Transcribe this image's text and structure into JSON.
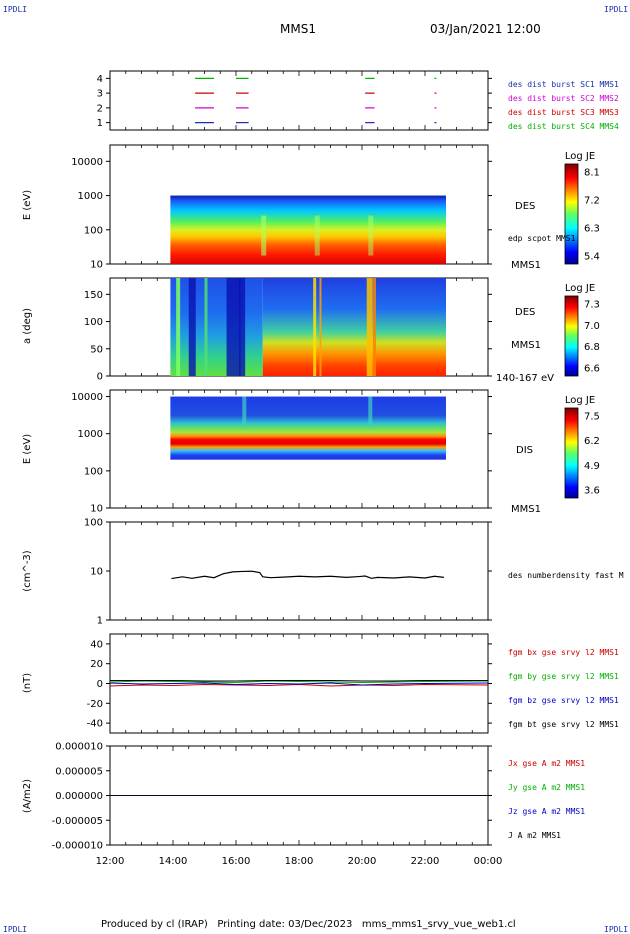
{
  "corners": {
    "tl": "IPDLI",
    "tr": "IPDLI",
    "bl": "IPDLI",
    "br": "IPDLI"
  },
  "header": {
    "mission": "MMS1",
    "datetime": "03/Jan/2021 12:00"
  },
  "footer": {
    "produced_by": "Produced by cl (IRAP)",
    "printing_date": "Printing date: 03/Dec/2023",
    "filename": "mms_mms1_srvy_vue_web1.cl"
  },
  "colors": {
    "red": "#cc0000",
    "green": "#00b000",
    "blue": "#0000cc",
    "magenta": "#d000d0",
    "black": "#000000",
    "mode_blue": "#1a2fb0"
  },
  "chart_data": [
    {
      "type": "scatter",
      "panel": "burst-modes",
      "ylabel": "",
      "yticks": [
        "1",
        "2",
        "3",
        "4"
      ],
      "ylim": [
        0.5,
        4.5
      ],
      "x_units": "hours since 12:00",
      "series": [
        {
          "name": "des dist burst SC1 MMS1",
          "level": 1,
          "color": "#1a2fb0",
          "segments": [
            [
              14.7,
              15.3
            ],
            [
              16.0,
              16.4
            ],
            [
              20.1,
              20.4
            ],
            [
              22.3,
              22.35
            ]
          ]
        },
        {
          "name": "des dist burst SC2 MMS2",
          "level": 2,
          "color": "#d000d0",
          "segments": [
            [
              14.7,
              15.3
            ],
            [
              16.0,
              16.4
            ],
            [
              20.1,
              20.4
            ],
            [
              22.3,
              22.35
            ]
          ]
        },
        {
          "name": "des dist burst SC3 MMS3",
          "level": 3,
          "color": "#cc0000",
          "segments": [
            [
              14.7,
              15.3
            ],
            [
              16.0,
              16.4
            ],
            [
              20.1,
              20.4
            ],
            [
              22.3,
              22.35
            ]
          ]
        },
        {
          "name": "des dist burst SC4 MMS4",
          "level": 4,
          "color": "#00b000",
          "segments": [
            [
              14.7,
              15.3
            ],
            [
              16.0,
              16.4
            ],
            [
              20.1,
              20.4
            ],
            [
              22.3,
              22.35
            ]
          ]
        }
      ]
    },
    {
      "type": "heatmap",
      "panel": "des-energy",
      "ylabel": "E (eV)",
      "yscale": "log",
      "ylim": [
        10,
        30000
      ],
      "yticks": [
        "10",
        "100",
        "1000",
        "10000"
      ],
      "x_range": [
        "13:55",
        "22:40"
      ],
      "y_range": [
        10,
        1000
      ],
      "colorbar": {
        "title": "Log JE",
        "ticks": [
          "8.1",
          "7.2",
          "6.3",
          "5.4"
        ],
        "range": [
          5.4,
          8.1
        ]
      },
      "labels": [
        "DES",
        "edp scpot MMS1",
        "MMS1"
      ]
    },
    {
      "type": "heatmap",
      "panel": "des-pitch",
      "ylabel": "a (deg)",
      "ylim": [
        0,
        180
      ],
      "yticks": [
        "0",
        "50",
        "100",
        "150"
      ],
      "x_range": [
        "13:55",
        "22:40"
      ],
      "colorbar": {
        "title": "Log JE",
        "ticks": [
          "7.3",
          "7.0",
          "6.8",
          "6.6"
        ],
        "range": [
          6.6,
          7.3
        ]
      },
      "labels": [
        "DES",
        "MMS1",
        "140-167 eV"
      ]
    },
    {
      "type": "heatmap",
      "panel": "dis-energy",
      "ylabel": "E (eV)",
      "yscale": "log",
      "ylim": [
        10,
        15000
      ],
      "yticks": [
        "10",
        "100",
        "1000",
        "10000"
      ],
      "x_range": [
        "13:55",
        "22:40"
      ],
      "y_range": [
        200,
        10000
      ],
      "colorbar": {
        "title": "Log JE",
        "ticks": [
          "7.5",
          "6.2",
          "4.9",
          "3.6"
        ],
        "range": [
          3.6,
          7.5
        ]
      },
      "labels": [
        "DIS",
        "MMS1"
      ]
    },
    {
      "type": "line",
      "panel": "density",
      "ylabel": "(cm^-3)",
      "yscale": "log",
      "ylim": [
        1,
        100
      ],
      "yticks": [
        "1",
        "10",
        "100"
      ],
      "series": [
        {
          "name": "des numberdensity fast M",
          "color": "#000000",
          "x": [
            13.95,
            14.3,
            14.6,
            15.0,
            15.3,
            15.6,
            15.9,
            16.2,
            16.5,
            16.75,
            16.85,
            17.1,
            17.5,
            18.0,
            18.5,
            19.0,
            19.5,
            19.9,
            20.1,
            20.3,
            20.5,
            21.0,
            21.5,
            22.0,
            22.3,
            22.6
          ],
          "y": [
            7.0,
            7.6,
            7.1,
            7.8,
            7.3,
            8.8,
            9.6,
            9.8,
            9.9,
            9.3,
            7.6,
            7.3,
            7.5,
            7.8,
            7.6,
            7.8,
            7.4,
            7.7,
            7.9,
            7.1,
            7.4,
            7.2,
            7.6,
            7.2,
            7.8,
            7.4
          ]
        }
      ]
    },
    {
      "type": "line",
      "panel": "magnetic-field",
      "ylabel": "(nT)",
      "ylim": [
        -50,
        50
      ],
      "yticks": [
        "-40",
        "-20",
        "0",
        "20",
        "40"
      ],
      "series": [
        {
          "name": "fgm bx gse srvy l2 MMS1",
          "color": "#cc0000",
          "x": [
            12,
            13,
            14,
            15,
            16,
            17,
            18,
            19,
            20,
            21,
            22,
            24
          ],
          "y": [
            -2.5,
            -1.5,
            -2.0,
            -1.0,
            -1.5,
            -2.0,
            -1.0,
            -2.5,
            -1.5,
            -2.0,
            -1.0,
            -1.5
          ]
        },
        {
          "name": "fgm by gse srvy l2 MMS1",
          "color": "#00b000",
          "x": [
            12,
            13,
            14,
            15,
            16,
            17,
            18,
            19,
            20,
            21,
            22,
            24
          ],
          "y": [
            1.5,
            2.5,
            2.0,
            1.5,
            1.0,
            2.5,
            2.0,
            1.5,
            1.0,
            1.5,
            2.0,
            2.5
          ]
        },
        {
          "name": "fgm bz gse srvy l2 MMS1",
          "color": "#0000cc",
          "x": [
            12,
            13,
            14,
            15,
            16,
            17,
            18,
            19,
            20,
            21,
            22,
            24
          ],
          "y": [
            0.5,
            -0.5,
            0.0,
            0.5,
            -1.0,
            0.0,
            -0.5,
            0.5,
            -1.5,
            -0.5,
            0.0,
            0.5
          ]
        },
        {
          "name": "fgm bt gse srvy l2 MMS1",
          "color": "#000000",
          "x": [
            12,
            13,
            14,
            15,
            16,
            17,
            18,
            19,
            20,
            21,
            22,
            24
          ],
          "y": [
            3.0,
            3.0,
            3.0,
            2.5,
            2.5,
            3.0,
            3.0,
            3.0,
            2.5,
            2.5,
            3.0,
            3.0
          ]
        }
      ]
    },
    {
      "type": "line",
      "panel": "current-density",
      "ylabel": "(A/m2)",
      "ylim": [
        -1e-05,
        1e-05
      ],
      "yticks": [
        "-0.000010",
        "-0.000005",
        "0.000000",
        "0.000005",
        "0.000010"
      ],
      "series": [
        {
          "name": "Jx gse A m2 MMS1",
          "color": "#cc0000",
          "x": [
            12,
            24
          ],
          "y": [
            0,
            0
          ]
        },
        {
          "name": "Jy gse A m2 MMS1",
          "color": "#00b000",
          "x": [
            12,
            24
          ],
          "y": [
            0,
            0
          ]
        },
        {
          "name": "Jz gse A m2 MMS1",
          "color": "#0000cc",
          "x": [
            12,
            24
          ],
          "y": [
            0,
            0
          ]
        },
        {
          "name": "J A m2 MMS1",
          "color": "#000000",
          "x": [
            12,
            24
          ],
          "y": [
            0,
            0
          ]
        }
      ]
    }
  ],
  "x_axis": {
    "ticks": [
      "12:00",
      "14:00",
      "16:00",
      "18:00",
      "20:00",
      "22:00",
      "00:00"
    ],
    "range_hours": [
      12,
      24
    ]
  }
}
